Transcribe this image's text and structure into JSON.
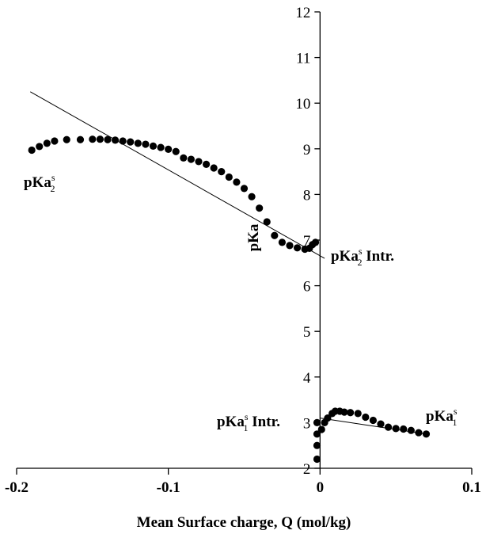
{
  "chart_data": {
    "type": "scatter",
    "x_label": "Mean Surface charge, Q (mol/kg)",
    "y_label": "pKa",
    "xlim": [
      -0.2,
      0.1
    ],
    "xticks": [
      -0.2,
      -0.1,
      0,
      0.1
    ],
    "ylim": [
      2,
      12
    ],
    "yticks": [
      2,
      3,
      4,
      5,
      6,
      7,
      8,
      9,
      10,
      11,
      12
    ],
    "series": [
      {
        "color": "#000000",
        "marker": "point",
        "x": [
          -0.19,
          -0.185,
          -0.18,
          -0.175,
          -0.167,
          -0.158,
          -0.15,
          -0.145,
          -0.14,
          -0.135,
          -0.13,
          -0.125,
          -0.12,
          -0.115,
          -0.11,
          -0.105,
          -0.1,
          -0.095,
          -0.09,
          -0.085,
          -0.08,
          -0.075,
          -0.07,
          -0.065,
          -0.06,
          -0.055,
          -0.05,
          -0.045,
          -0.04,
          -0.035,
          -0.03,
          -0.025,
          -0.02,
          -0.015,
          -0.01,
          -0.007,
          -0.005,
          -0.003
        ],
        "values": [
          8.97,
          9.05,
          9.12,
          9.17,
          9.2,
          9.2,
          9.21,
          9.21,
          9.2,
          9.19,
          9.17,
          9.15,
          9.12,
          9.1,
          9.06,
          9.03,
          8.99,
          8.94,
          8.8,
          8.77,
          8.72,
          8.66,
          8.58,
          8.5,
          8.38,
          8.27,
          8.13,
          7.95,
          7.7,
          7.4,
          7.1,
          6.95,
          6.88,
          6.83,
          6.8,
          6.82,
          6.9,
          6.95
        ]
      },
      {
        "color": "#000000",
        "marker": "point",
        "x": [
          -0.002,
          -0.002,
          -0.002,
          -0.002,
          0.001,
          0.003,
          0.005,
          0.008,
          0.01,
          0.013,
          0.016,
          0.02,
          0.025,
          0.03,
          0.035,
          0.04,
          0.045,
          0.05,
          0.055,
          0.06,
          0.065,
          0.07
        ],
        "values": [
          3.0,
          2.75,
          2.5,
          2.2,
          2.85,
          3.0,
          3.1,
          3.2,
          3.25,
          3.25,
          3.23,
          3.22,
          3.2,
          3.12,
          3.05,
          2.97,
          2.9,
          2.87,
          2.86,
          2.83,
          2.78,
          2.75
        ]
      },
      {
        "color": "#000000",
        "marker": "line",
        "x": [
          -0.191,
          0.003
        ],
        "values": [
          10.25,
          6.6
        ]
      },
      {
        "color": "#000000",
        "marker": "line",
        "x": [
          0.0,
          0.07
        ],
        "values": [
          3.1,
          2.75
        ]
      }
    ],
    "annotations": [
      {
        "base": "pKa",
        "sup": "s",
        "sub": "2",
        "suffix": ""
      },
      {
        "base": "pKa",
        "sup": "s",
        "sub": "2",
        "suffix": " Intr."
      },
      {
        "base": "pKa",
        "sup": "s",
        "sub": "1",
        "suffix": " Intr."
      },
      {
        "base": "pKa",
        "sup": "s",
        "sub": "1",
        "suffix": ""
      }
    ]
  }
}
